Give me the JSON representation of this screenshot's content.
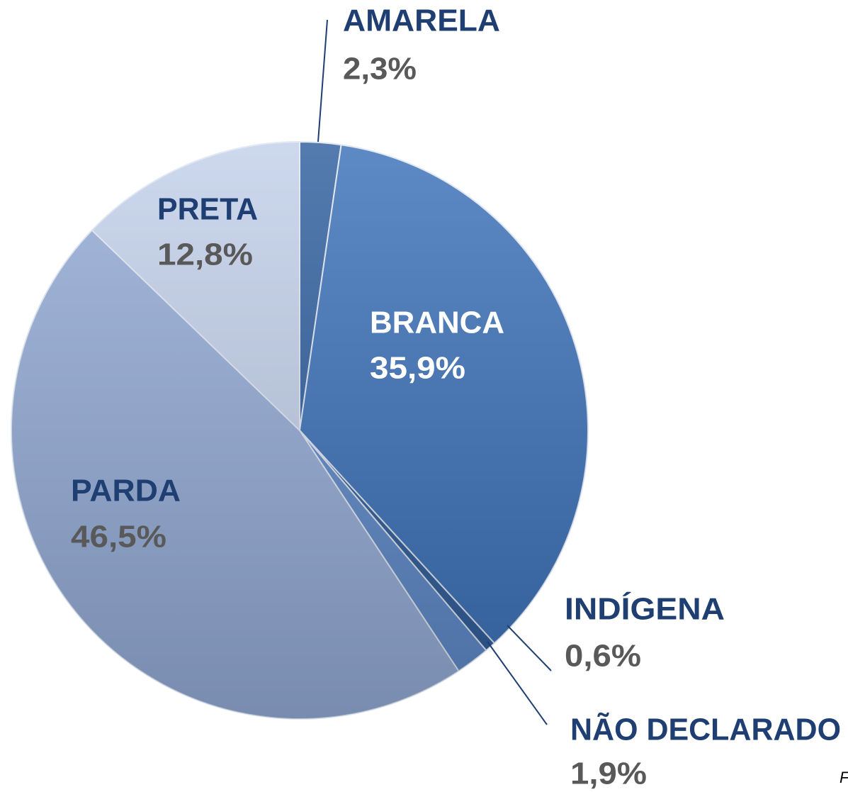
{
  "chart_data": {
    "type": "pie",
    "categories": [
      "AMARELA",
      "BRANCA",
      "INDÍGENA",
      "NÃO DECLARADO",
      "PARDA",
      "PRETA"
    ],
    "values": [
      2.3,
      35.9,
      0.6,
      1.9,
      46.5,
      12.8
    ],
    "value_labels": [
      "2,3%",
      "35,9%",
      "0,6%",
      "1,9%",
      "46,5%",
      "12,8%"
    ],
    "colors": [
      "#2f5e9e",
      "#3a70b8",
      "#2d5b97",
      "#5c88c8",
      "#93abd7",
      "#c2d0ea"
    ],
    "source": "Fo"
  }
}
